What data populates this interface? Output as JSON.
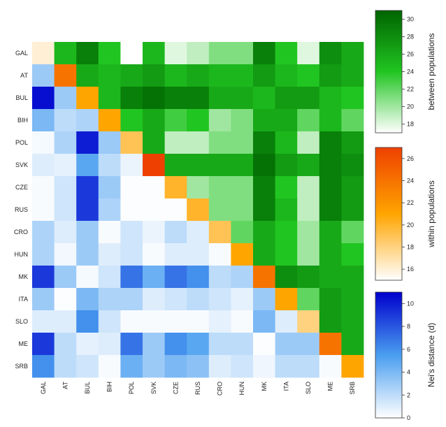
{
  "chart_data": {
    "type": "heatmap",
    "title": "",
    "rows": [
      "GAL",
      "AT",
      "BUL",
      "BIH",
      "POL",
      "SVK",
      "CZE",
      "RUS",
      "CRO",
      "HUN",
      "MK",
      "ITA",
      "SLO",
      "ME",
      "SRB"
    ],
    "columns": [
      "GAL",
      "AT",
      "BUL",
      "BIH",
      "POL",
      "SVK",
      "CZE",
      "RUS",
      "CRO",
      "HUN",
      "MK",
      "ITA",
      "SLO",
      "ME",
      "SRB"
    ],
    "lower_triangle_measure": "Nei's distance (d)",
    "upper_triangle_measure": "between populations",
    "diagonal_measure": "within populations",
    "values": [
      [
        16,
        25,
        29,
        24,
        17,
        25,
        18,
        19,
        21,
        21,
        29,
        24,
        18,
        28,
        26
      ],
      [
        3,
        24,
        26,
        25,
        26,
        27,
        25,
        26,
        25,
        25,
        27,
        25,
        24,
        27,
        26
      ],
      [
        10.5,
        3,
        21,
        25,
        29,
        30,
        29,
        29,
        26,
        26,
        25,
        27,
        27,
        25,
        24
      ],
      [
        4,
        2,
        2.5,
        21,
        24,
        26,
        23,
        24,
        20,
        21,
        26,
        26,
        22,
        25,
        22
      ],
      [
        0.3,
        2.5,
        10,
        3,
        19,
        26,
        19,
        19,
        21,
        21,
        29,
        25,
        19,
        29,
        27
      ],
      [
        1,
        0.8,
        5,
        2,
        0.6,
        27,
        26,
        26,
        26,
        26,
        30,
        27,
        26,
        29,
        28
      ],
      [
        0.2,
        1.5,
        9,
        3,
        0.1,
        0.1,
        20,
        20,
        21,
        21,
        29,
        24,
        19,
        29,
        27
      ],
      [
        0.2,
        1.5,
        9,
        2.5,
        0.1,
        0.1,
        0.1,
        20,
        21,
        21,
        29,
        25,
        19,
        29,
        27
      ],
      [
        2.5,
        1,
        3,
        0.2,
        1.5,
        0.6,
        2,
        1,
        19,
        22,
        26,
        24,
        20,
        26,
        22
      ],
      [
        2.5,
        0.4,
        3,
        1,
        1.5,
        0.2,
        1,
        1,
        0.2,
        21,
        26,
        24,
        20,
        26,
        24
      ],
      [
        9,
        3,
        0.3,
        1.5,
        7,
        4.5,
        7,
        6,
        2,
        2.5,
        24,
        28,
        27,
        26,
        26
      ],
      [
        3,
        0.1,
        4,
        2.5,
        2.5,
        1,
        1.5,
        2,
        1.5,
        0.8,
        3,
        21,
        22,
        27,
        26
      ],
      [
        1,
        1,
        6,
        1.5,
        0.2,
        0.2,
        0.2,
        0.2,
        0.8,
        0.2,
        4,
        1,
        18,
        27,
        26
      ],
      [
        9,
        2,
        0.8,
        1,
        7,
        3,
        6,
        5,
        2,
        2,
        0.1,
        3,
        3,
        24,
        26
      ],
      [
        6,
        2,
        1.5,
        0.2,
        4.5,
        3,
        4,
        3.5,
        1,
        1.5,
        0.5,
        2,
        2,
        0.2,
        21
      ]
    ],
    "colorbars": [
      {
        "label": "between populations",
        "ticks": [
          18,
          20,
          22,
          24,
          26,
          28,
          30
        ],
        "range": [
          17,
          31
        ],
        "colors": [
          "#ffffff",
          "#21c521",
          "#006400"
        ]
      },
      {
        "label": "within populations",
        "ticks": [
          16,
          18,
          20,
          22,
          24,
          26
        ],
        "range": [
          15,
          27
        ],
        "colors": [
          "#ffffff",
          "#ffa500",
          "#ee4000"
        ]
      },
      {
        "label": "Nei's distance (d)",
        "ticks": [
          0,
          2,
          4,
          6,
          8,
          10
        ],
        "range": [
          0,
          11
        ],
        "colors": [
          "#ffffff",
          "#4a9ef0",
          "#0000cd"
        ]
      }
    ]
  }
}
